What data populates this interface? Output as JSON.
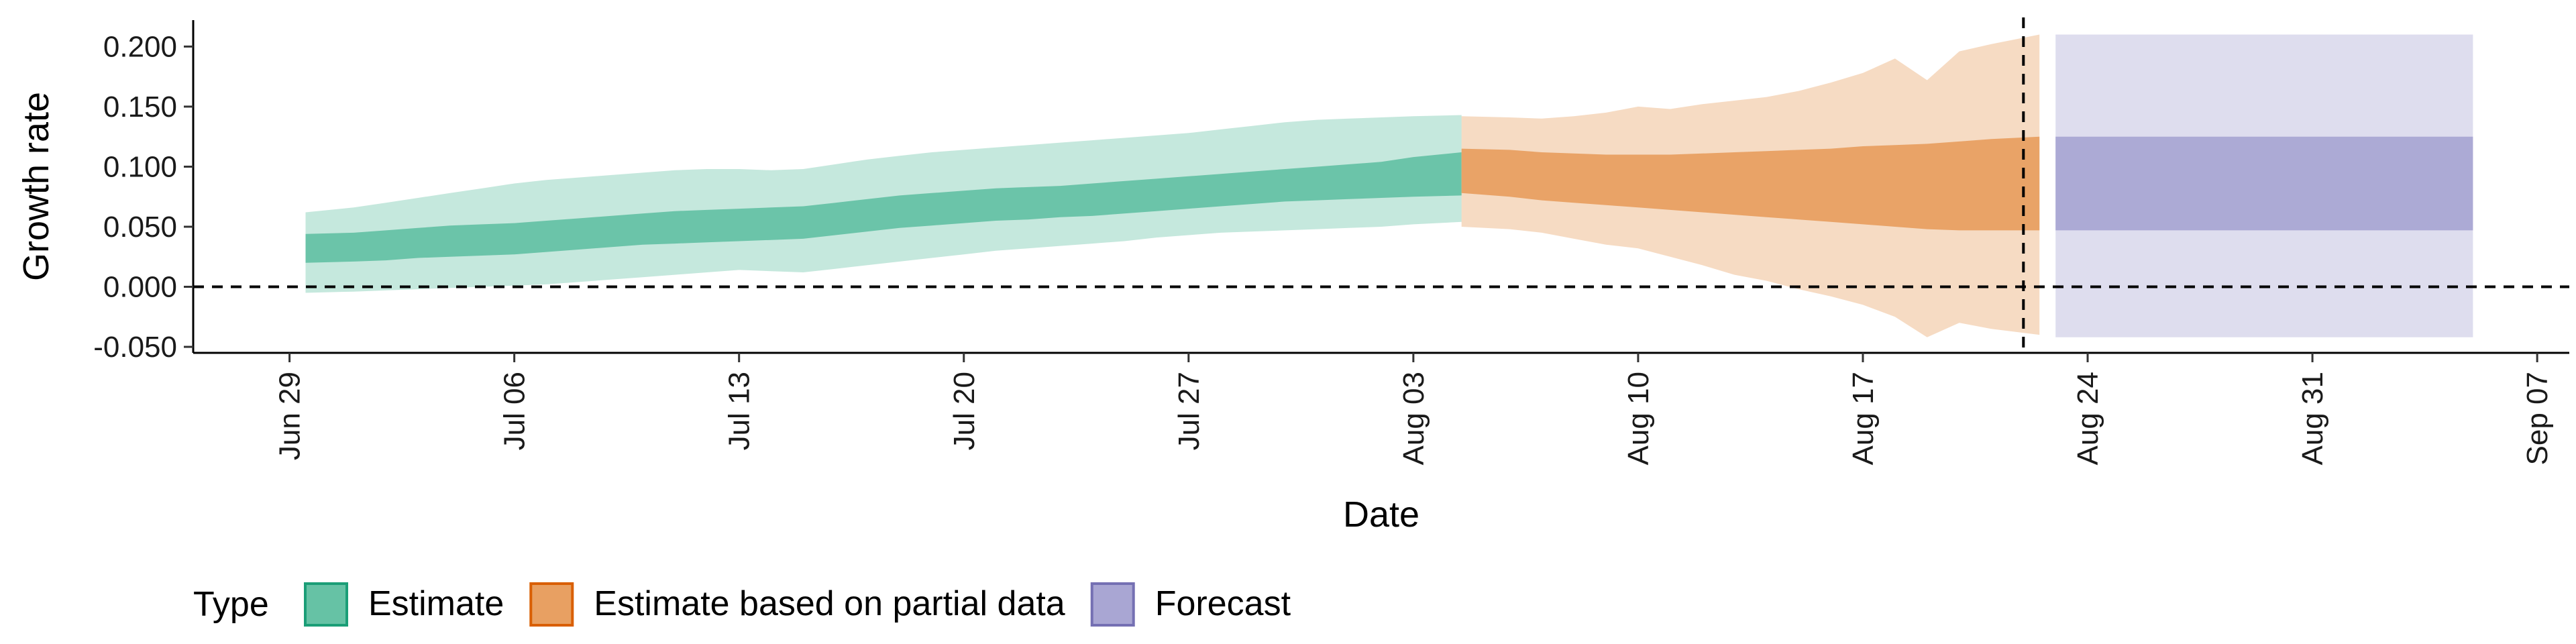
{
  "chart_data": {
    "type": "area",
    "xlabel": "Date",
    "ylabel": "Growth rate",
    "ylim": [
      -0.055,
      0.222
    ],
    "y_ticks": [
      -0.05,
      0.0,
      0.05,
      0.1,
      0.15,
      0.2
    ],
    "y_tick_labels": [
      "-0.050",
      "0.000",
      "0.050",
      "0.100",
      "0.150",
      "0.200"
    ],
    "xlim": [
      "2020-06-26",
      "2020-09-08"
    ],
    "x_ticks": [
      "2020-06-29",
      "2020-07-06",
      "2020-07-13",
      "2020-07-20",
      "2020-07-27",
      "2020-08-03",
      "2020-08-10",
      "2020-08-17",
      "2020-08-24",
      "2020-08-31",
      "2020-09-07"
    ],
    "x_tick_labels": [
      "Jun 29",
      "Jul 06",
      "Jul 13",
      "Jul 20",
      "Jul 27",
      "Aug 03",
      "Aug 10",
      "Aug 17",
      "Aug 24",
      "Aug 31",
      "Sep 07"
    ],
    "reference_lines": [
      {
        "axis": "y",
        "value": 0.0,
        "style": "dashed"
      },
      {
        "axis": "x",
        "value": "2020-08-22",
        "style": "dashed"
      }
    ],
    "legend": {
      "title": "Type",
      "placement": "bottom-left",
      "entries": [
        {
          "label": "Estimate",
          "color": "#66c2a5",
          "border": "#1b9e77"
        },
        {
          "label": "Estimate based on partial data",
          "color": "#e8a062",
          "border": "#d95f02"
        },
        {
          "label": "Forecast",
          "color": "#a9a6d3",
          "border": "#7570b3"
        }
      ]
    },
    "series": [
      {
        "type_key": "Estimate",
        "color": "#66c2a5",
        "x": [
          "2020-06-30",
          "2020-07-01",
          "2020-07-02",
          "2020-07-03",
          "2020-07-04",
          "2020-07-05",
          "2020-07-06",
          "2020-07-07",
          "2020-07-08",
          "2020-07-09",
          "2020-07-10",
          "2020-07-11",
          "2020-07-12",
          "2020-07-13",
          "2020-07-14",
          "2020-07-15",
          "2020-07-16",
          "2020-07-17",
          "2020-07-18",
          "2020-07-19",
          "2020-07-20",
          "2020-07-21",
          "2020-07-22",
          "2020-07-23",
          "2020-07-24",
          "2020-07-25",
          "2020-07-26",
          "2020-07-27",
          "2020-07-28",
          "2020-07-29",
          "2020-07-30",
          "2020-07-31",
          "2020-08-01",
          "2020-08-02",
          "2020-08-03",
          "2020-08-04"
        ],
        "lower90": [
          -0.005,
          -0.004,
          -0.003,
          -0.002,
          -0.001,
          0.0,
          0.001,
          0.002,
          0.004,
          0.006,
          0.008,
          0.01,
          0.012,
          0.014,
          0.013,
          0.012,
          0.015,
          0.018,
          0.021,
          0.024,
          0.027,
          0.03,
          0.032,
          0.034,
          0.036,
          0.038,
          0.041,
          0.043,
          0.045,
          0.046,
          0.047,
          0.048,
          0.049,
          0.05,
          0.052,
          0.054
        ],
        "lower50": [
          0.02,
          0.021,
          0.022,
          0.024,
          0.025,
          0.026,
          0.027,
          0.029,
          0.031,
          0.033,
          0.035,
          0.036,
          0.037,
          0.038,
          0.039,
          0.04,
          0.043,
          0.046,
          0.049,
          0.051,
          0.053,
          0.055,
          0.056,
          0.058,
          0.059,
          0.061,
          0.063,
          0.065,
          0.067,
          0.069,
          0.071,
          0.072,
          0.073,
          0.074,
          0.075,
          0.076
        ],
        "upper50": [
          0.044,
          0.045,
          0.047,
          0.049,
          0.051,
          0.052,
          0.053,
          0.055,
          0.057,
          0.059,
          0.061,
          0.063,
          0.064,
          0.065,
          0.066,
          0.067,
          0.07,
          0.073,
          0.076,
          0.078,
          0.08,
          0.082,
          0.083,
          0.084,
          0.086,
          0.088,
          0.09,
          0.092,
          0.094,
          0.096,
          0.098,
          0.1,
          0.102,
          0.104,
          0.108,
          0.112
        ],
        "upper90": [
          0.062,
          0.066,
          0.07,
          0.074,
          0.078,
          0.082,
          0.086,
          0.089,
          0.091,
          0.093,
          0.095,
          0.097,
          0.098,
          0.098,
          0.097,
          0.098,
          0.102,
          0.106,
          0.109,
          0.112,
          0.114,
          0.116,
          0.118,
          0.12,
          0.122,
          0.124,
          0.126,
          0.128,
          0.131,
          0.134,
          0.137,
          0.139,
          0.14,
          0.141,
          0.142,
          0.143
        ]
      },
      {
        "type_key": "Estimate based on partial data",
        "color": "#e8a062",
        "x": [
          "2020-08-05",
          "2020-08-06",
          "2020-08-07",
          "2020-08-08",
          "2020-08-09",
          "2020-08-10",
          "2020-08-11",
          "2020-08-12",
          "2020-08-13",
          "2020-08-14",
          "2020-08-15",
          "2020-08-16",
          "2020-08-17",
          "2020-08-18",
          "2020-08-19",
          "2020-08-20",
          "2020-08-21",
          "2020-08-22"
        ],
        "lower90": [
          0.05,
          0.048,
          0.045,
          0.04,
          0.035,
          0.032,
          0.025,
          0.018,
          0.01,
          0.005,
          -0.002,
          -0.008,
          -0.015,
          -0.025,
          -0.042,
          -0.03,
          -0.035,
          -0.04
        ],
        "lower50": [
          0.078,
          0.075,
          0.072,
          0.07,
          0.068,
          0.066,
          0.064,
          0.062,
          0.06,
          0.058,
          0.056,
          0.054,
          0.052,
          0.05,
          0.048,
          0.047,
          0.047,
          0.047
        ],
        "upper50": [
          0.115,
          0.114,
          0.112,
          0.111,
          0.11,
          0.11,
          0.11,
          0.111,
          0.112,
          0.113,
          0.114,
          0.115,
          0.117,
          0.118,
          0.119,
          0.121,
          0.123,
          0.125
        ],
        "upper90": [
          0.142,
          0.141,
          0.14,
          0.142,
          0.145,
          0.15,
          0.148,
          0.152,
          0.155,
          0.158,
          0.163,
          0.17,
          0.178,
          0.19,
          0.172,
          0.196,
          0.202,
          0.21
        ]
      },
      {
        "type_key": "Forecast",
        "color": "#a9a6d3",
        "x": [
          "2020-08-23",
          "2020-09-05"
        ],
        "lower90": [
          -0.042,
          -0.042
        ],
        "lower50": [
          0.047,
          0.047
        ],
        "upper50": [
          0.125,
          0.125
        ],
        "upper90": [
          0.21,
          0.21
        ]
      }
    ]
  }
}
